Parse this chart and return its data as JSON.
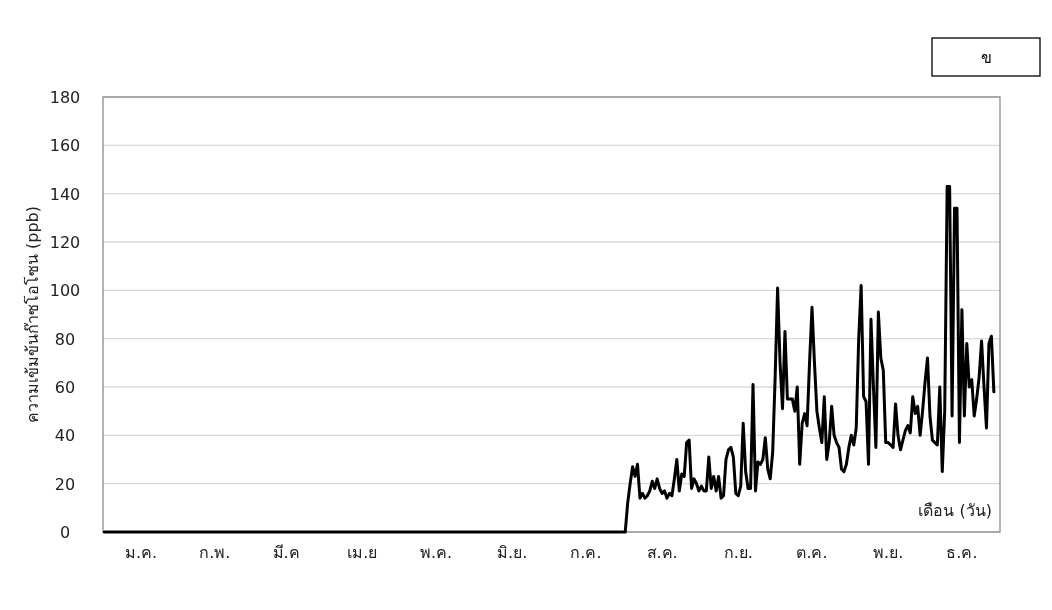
{
  "chart_data": {
    "type": "line",
    "ylabel": "ความเข้มข้นก๊าซโอโซน (ppb)",
    "xlabel": "เดือน (วัน)",
    "annotations": [
      "ข"
    ],
    "categories": [
      null,
      null,
      null,
      null,
      null,
      null,
      null,
      null,
      null,
      null,
      null,
      null,
      null,
      null,
      null,
      "ม.ค.",
      null,
      null,
      null,
      null,
      null,
      null,
      null,
      null,
      null,
      null,
      null,
      null,
      null,
      null,
      null,
      null,
      null,
      null,
      null,
      null,
      null,
      null,
      null,
      null,
      null,
      null,
      null,
      null,
      null,
      "ก.พ.",
      null,
      null,
      null,
      null,
      null,
      null,
      null,
      null,
      null,
      null,
      null,
      null,
      null,
      null,
      null,
      null,
      null,
      null,
      null,
      null,
      null,
      null,
      null,
      null,
      null,
      null,
      null,
      null,
      "มี.ค",
      null,
      null,
      null,
      null,
      null,
      null,
      null,
      null,
      null,
      null,
      null,
      null,
      null,
      null,
      null,
      null,
      null,
      null,
      null,
      null,
      null,
      null,
      null,
      null,
      null,
      null,
      null,
      null,
      null,
      null,
      "เม.ย",
      null,
      null,
      null,
      null,
      null,
      null,
      null,
      null,
      null,
      null,
      null,
      null,
      null,
      null,
      null,
      null,
      null,
      null,
      null,
      null,
      null,
      null,
      null,
      null,
      null,
      null,
      null,
      null,
      null,
      "พ.ค.",
      null,
      null,
      null,
      null,
      null,
      null,
      null,
      null,
      null,
      null,
      null,
      null,
      null,
      null,
      null,
      null,
      null,
      null,
      null,
      null,
      null,
      null,
      null,
      null,
      null,
      null,
      null,
      null,
      null,
      null,
      "มิ.ย.",
      null,
      null,
      null,
      null,
      null,
      null,
      null,
      null,
      null,
      null,
      null,
      null,
      null,
      null,
      null,
      null,
      null,
      null,
      null,
      null,
      null,
      null,
      null,
      null,
      null,
      null,
      null,
      null,
      null,
      "ก.ค.",
      null,
      null,
      null,
      null,
      null,
      null,
      null,
      null,
      null,
      null,
      null,
      null,
      null,
      null,
      null,
      null,
      null,
      null,
      null,
      null,
      null,
      null,
      null,
      null,
      null,
      null,
      null,
      null,
      null,
      null,
      "ส.ค.",
      null,
      null,
      null,
      null,
      null,
      null,
      null,
      null,
      null,
      null,
      null,
      null,
      null,
      null,
      null,
      null,
      null,
      null,
      null,
      null,
      null,
      null,
      null,
      null,
      null,
      null,
      null,
      null,
      null,
      null,
      "ก.ย.",
      null,
      null,
      null,
      null,
      null,
      null,
      null,
      null,
      null,
      null,
      null,
      null,
      null,
      null,
      null,
      null,
      null,
      null,
      null,
      null,
      null,
      null,
      null,
      null,
      null,
      null,
      null,
      null,
      null,
      "ต.ค.",
      null,
      null,
      null,
      null,
      null,
      null,
      null,
      null,
      null,
      null,
      null,
      null,
      null,
      null,
      null,
      null,
      null,
      null,
      null,
      null,
      null,
      null,
      null,
      null,
      null,
      null,
      null,
      null,
      null,
      null,
      "พ.ย.",
      null,
      null,
      null,
      null,
      null,
      null,
      null,
      null,
      null,
      null,
      null,
      null,
      null,
      null,
      null,
      null,
      null,
      null,
      null,
      null,
      null,
      null,
      null,
      null,
      null,
      null,
      null,
      null,
      null,
      "ธ.ค.",
      null,
      null,
      null,
      null,
      null,
      null,
      null,
      null,
      null,
      null,
      null,
      null,
      null,
      null,
      null
    ],
    "ylim": [
      0,
      180
    ],
    "yticks": [
      0,
      20,
      40,
      60,
      80,
      100,
      120,
      140,
      160,
      180
    ],
    "grid": "y",
    "series": [
      {
        "color": "#000000",
        "values": [
          0,
          0,
          0,
          0,
          0,
          0,
          0,
          0,
          0,
          0,
          0,
          0,
          0,
          0,
          0,
          0,
          0,
          0,
          0,
          0,
          0,
          0,
          0,
          0,
          0,
          0,
          0,
          0,
          0,
          0,
          0,
          0,
          0,
          0,
          0,
          0,
          0,
          0,
          0,
          0,
          0,
          0,
          0,
          0,
          0,
          0,
          0,
          0,
          0,
          0,
          0,
          0,
          0,
          0,
          0,
          0,
          0,
          0,
          0,
          0,
          0,
          0,
          0,
          0,
          0,
          0,
          0,
          0,
          0,
          0,
          0,
          0,
          0,
          0,
          0,
          0,
          0,
          0,
          0,
          0,
          0,
          0,
          0,
          0,
          0,
          0,
          0,
          0,
          0,
          0,
          0,
          0,
          0,
          0,
          0,
          0,
          0,
          0,
          0,
          0,
          0,
          0,
          0,
          0,
          0,
          0,
          0,
          0,
          0,
          0,
          0,
          0,
          0,
          0,
          0,
          0,
          0,
          0,
          0,
          0,
          0,
          0,
          0,
          0,
          0,
          0,
          0,
          0,
          0,
          0,
          0,
          0,
          0,
          0,
          0,
          0,
          0,
          0,
          0,
          0,
          0,
          0,
          0,
          0,
          0,
          0,
          0,
          0,
          0,
          0,
          0,
          0,
          0,
          0,
          0,
          0,
          0,
          0,
          0,
          0,
          0,
          0,
          0,
          0,
          0,
          0,
          0,
          0,
          0,
          0,
          0,
          0,
          0,
          0,
          0,
          0,
          0,
          0,
          0,
          0,
          0,
          0,
          0,
          0,
          0,
          0,
          0,
          0,
          0,
          0,
          0,
          0,
          0,
          0,
          0,
          0,
          0,
          0,
          0,
          0,
          0,
          0,
          0,
          0,
          0,
          0,
          0,
          0,
          0,
          0,
          0,
          0,
          0,
          12,
          20,
          27,
          23,
          28,
          14,
          16,
          14,
          15,
          17,
          21,
          18,
          22,
          18,
          16,
          17,
          14,
          16,
          15,
          22,
          30,
          17,
          24,
          23,
          37,
          38,
          18,
          22,
          20,
          17,
          19,
          17,
          17,
          31,
          18,
          23,
          17,
          23,
          14,
          15,
          30,
          34,
          35,
          31,
          16,
          15,
          19,
          45,
          25,
          18,
          18,
          61,
          17,
          29,
          28,
          30,
          39,
          26,
          22,
          33,
          64,
          101,
          70,
          51,
          83,
          55,
          55,
          55,
          50,
          60,
          28,
          45,
          49,
          44,
          70,
          93,
          70,
          50,
          43,
          37,
          56,
          30,
          37,
          52,
          40,
          37,
          35,
          26,
          25,
          28,
          35,
          40,
          36,
          43,
          80,
          102,
          56,
          54,
          28,
          88,
          60,
          35,
          91,
          72,
          67,
          37,
          37,
          36,
          35,
          53,
          40,
          34,
          38,
          42,
          44,
          41,
          56,
          49,
          52,
          40,
          50,
          62,
          72,
          48,
          38,
          37,
          36,
          60,
          25,
          50,
          143,
          143,
          48,
          134,
          134,
          37,
          92,
          48,
          78,
          60,
          63,
          48,
          55,
          64,
          79,
          60,
          43,
          78,
          81,
          58,
          null,
          null
        ]
      }
    ]
  }
}
